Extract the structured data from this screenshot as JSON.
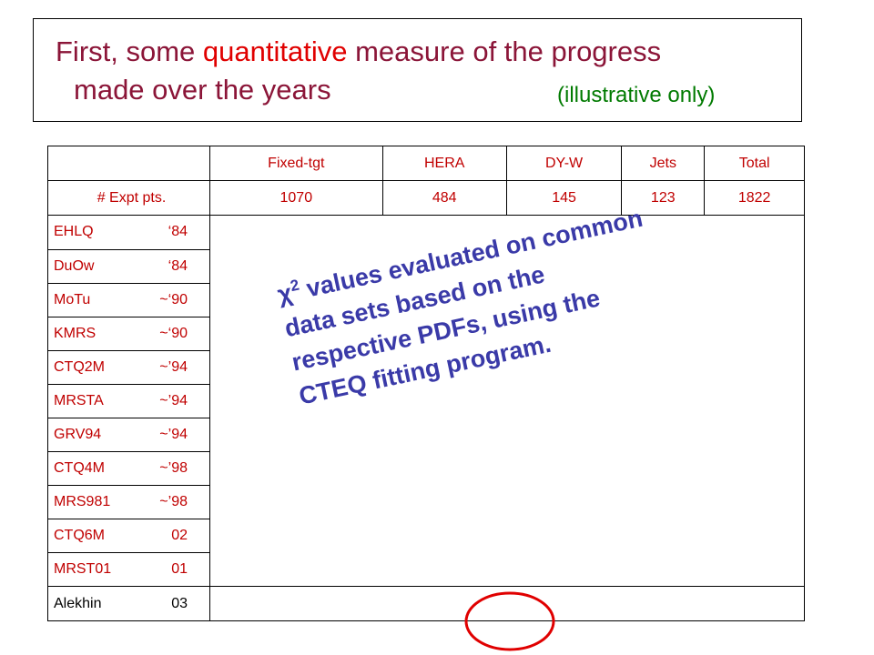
{
  "header": {
    "title_parts": [
      "First, some",
      "quantitative",
      "measure of the progress",
      "made over the years"
    ],
    "note": "(illustrative only)"
  },
  "table": {
    "columns": [
      "Fixed-tgt",
      "HERA",
      "DY-W",
      "Jets",
      "Total"
    ],
    "points_row": {
      "label": "# Expt pts.",
      "values": [
        "1070",
        "484",
        "145",
        "123",
        "1822"
      ]
    },
    "rows": [
      [
        "EHLQ",
        "‘84"
      ],
      [
        "DuOw",
        "‘84"
      ],
      [
        "MoTu",
        "~‘90"
      ],
      [
        "KMRS",
        "~‘90"
      ],
      [
        "CTQ2M",
        "~’94"
      ],
      [
        "MRSTA",
        "~’94"
      ],
      [
        "GRV94",
        "~’94"
      ],
      [
        "CTQ4M",
        "~’98"
      ],
      [
        "MRS981",
        "~’98"
      ],
      [
        "CTQ6M",
        "02"
      ],
      [
        "MRST01",
        "01"
      ],
      [
        "Alekhin",
        "03"
      ]
    ]
  },
  "overlay": {
    "symbol": "χ",
    "superscript": "2",
    "lines": [
      "values evaluated on common",
      "data sets based on the",
      "respective PDFs, using the",
      "CTEQ fitting program."
    ]
  }
}
